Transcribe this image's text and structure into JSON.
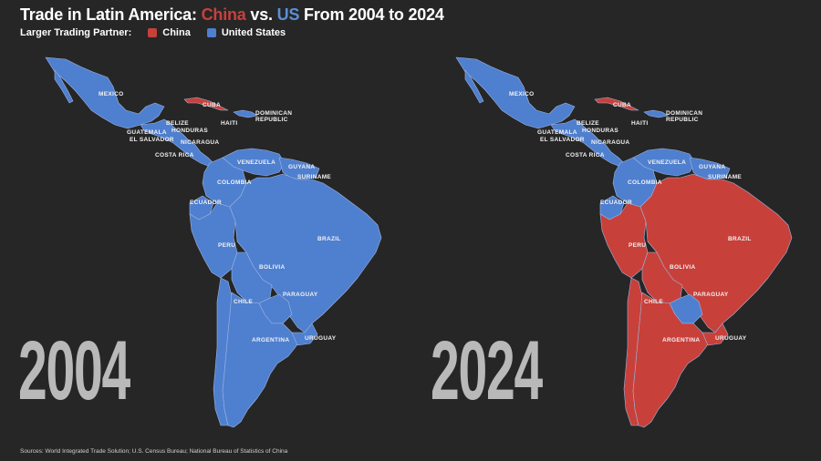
{
  "title": {
    "prefix": "Trade in Latin America: ",
    "china": "China",
    "middle": " vs. ",
    "us": "US",
    "suffix": " From 2004 to 2024"
  },
  "legend": {
    "label": "Larger Trading Partner:",
    "items": [
      {
        "name": "China",
        "color": "#c8403a"
      },
      {
        "name": "United States",
        "color": "#4f7fcf"
      }
    ]
  },
  "maps": [
    {
      "year": "2004",
      "labels": {
        "mexico": "MEXICO",
        "cuba": "CUBA",
        "haiti": "HAITI",
        "dominican": "DOMINICAN",
        "republic": "REPUBLIC",
        "belize": "BELIZE",
        "honduras": "HONDURAS",
        "guatemala": "GUATEMALA",
        "elsalvador": "EL SALVADOR",
        "nicaragua": "NICARAGUA",
        "costarica": "COSTA RICA",
        "venezuela": "VENEZUELA",
        "guyana": "GUYANA",
        "suriname": "SURINAME",
        "colombia": "COLOMBIA",
        "ecuador": "ECUADOR",
        "peru": "PERU",
        "brazil": "BRAZIL",
        "bolivia": "BOLIVIA",
        "paraguay": "PARAGUAY",
        "chile": "CHILE",
        "argentina": "ARGENTINA",
        "uruguay": "URUGUAY"
      },
      "partner": {
        "mexico": "United States",
        "cuba": "China",
        "central_america": "United States",
        "venezuela": "United States",
        "colombia": "United States",
        "ecuador": "United States",
        "peru": "United States",
        "brazil": "United States",
        "bolivia": "United States",
        "paraguay": "United States",
        "chile": "United States",
        "argentina": "United States",
        "uruguay": "United States"
      }
    },
    {
      "year": "2024",
      "labels": {
        "mexico": "MEXICO",
        "cuba": "CUBA",
        "haiti": "HAITI",
        "dominican": "DOMINICAN",
        "republic": "REPUBLIC",
        "belize": "BELIZE",
        "honduras": "HONDURAS",
        "guatemala": "GUATEMALA",
        "elsalvador": "EL SALVADOR",
        "nicaragua": "NICARAGUA",
        "costarica": "COSTA RICA",
        "venezuela": "VENEZUELA",
        "guyana": "GUYANA",
        "suriname": "SURINAME",
        "colombia": "COLOMBIA",
        "ecuador": "ECUADOR",
        "peru": "PERU",
        "brazil": "BRAZIL",
        "bolivia": "BOLIVIA",
        "paraguay": "PARAGUAY",
        "chile": "CHILE",
        "argentina": "ARGENTINA",
        "uruguay": "URUGUAY"
      },
      "partner": {
        "mexico": "United States",
        "cuba": "China",
        "central_america": "United States",
        "venezuela": "United States",
        "colombia": "United States",
        "ecuador": "United States",
        "peru": "China",
        "brazil": "China",
        "bolivia": "China",
        "paraguay": "United States",
        "chile": "China",
        "argentina": "China",
        "uruguay": "China"
      }
    }
  ],
  "sources": "Sources: World Integrated Trade Solution; U.S. Census Bureau; National Bureau of Statistics of China"
}
